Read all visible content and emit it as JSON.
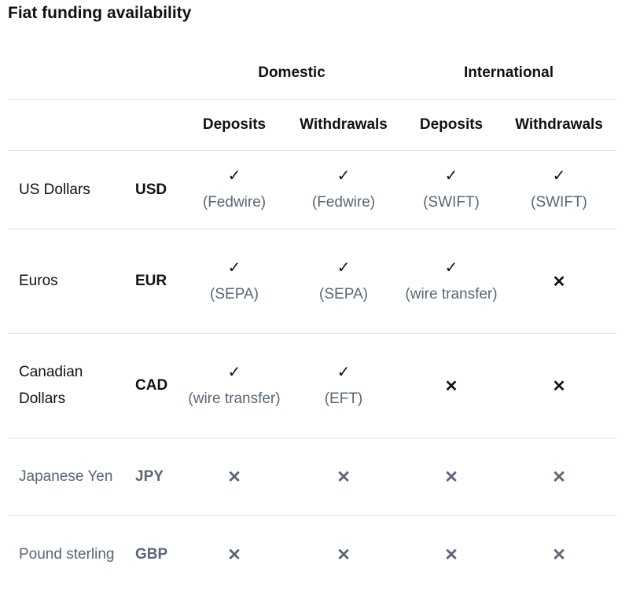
{
  "title": "Fiat funding availability",
  "headers": {
    "domestic": "Domestic",
    "international": "International",
    "dom_deposits": "Deposits",
    "dom_withdrawals": "Withdrawals",
    "int_deposits": "Deposits",
    "int_withdrawals": "Withdrawals"
  },
  "symbols": {
    "check": "✓",
    "cross": "✕"
  },
  "rows": [
    {
      "name": "US Dollars",
      "code": "USD",
      "dom_dep": "(Fedwire)",
      "dom_wd": "(Fedwire)",
      "int_dep": "(SWIFT)",
      "int_wd": "(SWIFT)"
    },
    {
      "name": "Euros",
      "code": "EUR",
      "dom_dep": "(SEPA)",
      "dom_wd": "(SEPA)",
      "int_dep": "(wire transfer)"
    },
    {
      "name": "Canadian Dollars",
      "code": "CAD",
      "dom_dep": "(wire transfer)",
      "dom_wd": "(EFT)"
    },
    {
      "name": "Japanese Yen",
      "code": "JPY"
    },
    {
      "name": "Pound sterling",
      "code": "GBP"
    }
  ]
}
